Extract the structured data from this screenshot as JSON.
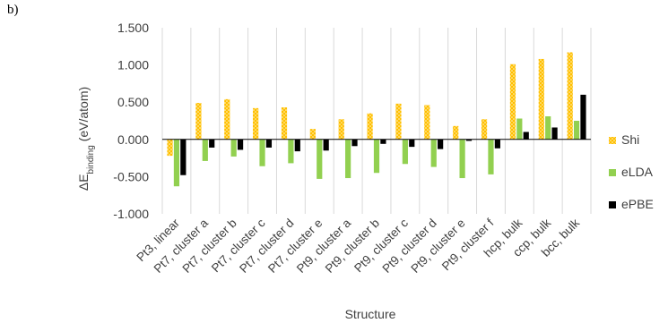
{
  "panel_label": "b)",
  "chart_data": {
    "type": "bar",
    "xlabel": "Structure",
    "ylabel": "ΔE",
    "ylabel_subscript": "binding",
    "ylabel_unit": " (eV/atom)",
    "ylim": [
      -1.0,
      1.5
    ],
    "yticks": [
      "1.500",
      "1.000",
      "0.500",
      "0.000",
      "-0.500",
      "-1.000"
    ],
    "ytick_values": [
      1.5,
      1.0,
      0.5,
      0.0,
      -0.5,
      -1.0
    ],
    "grid": "vertical",
    "legend": "right",
    "categories": [
      "Pt3, linear",
      "Pt7, cluster a",
      "Pt7, cluster b",
      "Pt7, cluster c",
      "Pt7, cluster d",
      "Pt7, cluster e",
      "Pt9, cluster a",
      "Pt9, cluster b",
      "Pt9, cluster c",
      "Pt9, cluster d",
      "Pt9, cluster e",
      "Pt9, cluster f",
      "hcp, bulk",
      "ccp, bulk",
      "bcc, bulk"
    ],
    "series": [
      {
        "name": "Shi",
        "color": "#FFC000",
        "pattern": "dotted",
        "values": [
          -0.22,
          0.49,
          0.54,
          0.42,
          0.43,
          0.14,
          0.27,
          0.35,
          0.48,
          0.46,
          0.18,
          0.27,
          1.01,
          1.08,
          1.17
        ]
      },
      {
        "name": "eLDA",
        "color": "#92D050",
        "pattern": "solid",
        "values": [
          -0.63,
          -0.29,
          -0.23,
          -0.36,
          -0.32,
          -0.53,
          -0.52,
          -0.45,
          -0.33,
          -0.37,
          -0.52,
          -0.47,
          0.28,
          0.31,
          0.25
        ]
      },
      {
        "name": "ePBE",
        "color": "#000000",
        "pattern": "solid",
        "values": [
          -0.48,
          -0.11,
          -0.14,
          -0.11,
          -0.16,
          -0.15,
          -0.09,
          -0.06,
          -0.1,
          -0.13,
          -0.02,
          -0.12,
          0.1,
          0.16,
          0.6
        ]
      }
    ]
  }
}
